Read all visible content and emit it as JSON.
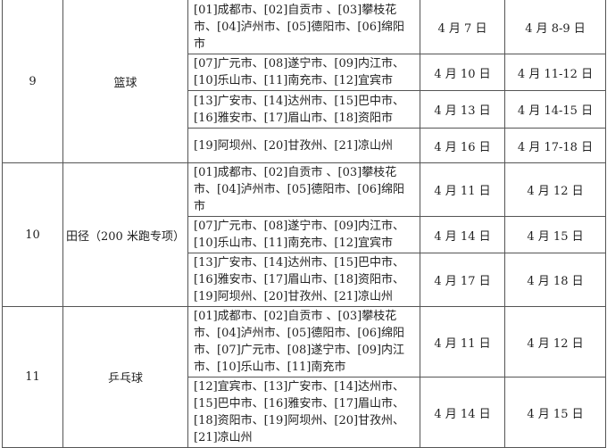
{
  "schedule": [
    {
      "no": "9",
      "sport": "篮球",
      "groups": [
        {
          "regions": [
            "[01]成都市、[02]自贡市 、[03]攀枝花",
            "市、[04]泸州市、[05]德阳市、[06]绵阳",
            "市"
          ],
          "date1": "4 月 7 日",
          "date2": "4 月 8-9 日"
        },
        {
          "regions": [
            "[07]广元市、[08]遂宁市、[09]内江市、",
            "[10]乐山市、[11]南充市、[12]宜宾市"
          ],
          "date1": "4 月 10 日",
          "date2": "4 月 11-12 日"
        },
        {
          "regions": [
            "[13]广安市、[14]达州市、[15]巴中市、",
            "[16]雅安市、[17]眉山市、[18]资阳市"
          ],
          "date1": "4 月 13 日",
          "date2": "4 月 14-15 日"
        },
        {
          "regions": [
            "[19]阿坝州、[20]甘孜州、[21]凉山州"
          ],
          "date1": "4 月 16 日",
          "date2": "4 月 17-18 日"
        }
      ]
    },
    {
      "no": "10",
      "sport": "田径（200 米跑专项）",
      "groups": [
        {
          "regions": [
            "[01]成都市、[02]自贡市 、[03]攀枝花",
            "市、[04]泸州市、[05]德阳市、[06]绵阳",
            "市"
          ],
          "date1": "4 月 11 日",
          "date2": "4 月 12 日"
        },
        {
          "regions": [
            "[07]广元市、[08]遂宁市、[09]内江市、",
            "[10]乐山市、[11]南充市、[12]宜宾市"
          ],
          "date1": "4 月 14 日",
          "date2": "4 月 15 日"
        },
        {
          "regions": [
            "[13]广安市、[14]达州市、[15]巴中市、",
            "[16]雅安市、[17]眉山市、[18]资阳市、",
            "[19]阿坝州、[20]甘孜州、[21]凉山州"
          ],
          "date1": "4 月 17 日",
          "date2": "4 月 18 日"
        }
      ]
    },
    {
      "no": "11",
      "sport": "乒乓球",
      "groups": [
        {
          "regions": [
            "[01]成都市、[02]自贡市 、[03]攀枝花",
            "市、[04]泸州市、[05]德阳市、[06]绵阳",
            "市、[07]广元市、[08]遂宁市、[09]内江",
            "市、[10]乐山市、[11]南充市"
          ],
          "date1": "4 月 11 日",
          "date2": "4 月 12 日"
        },
        {
          "regions": [
            "[12]宜宾市、[13]广安市、[14]达州市、",
            "[15]巴中市、[16]雅安市、[17]眉山市、",
            "[18]资阳市、[19]阿坝州、[20]甘孜州、",
            "[21]凉山州"
          ],
          "date1": "4 月 14 日",
          "date2": "4 月 15 日"
        }
      ]
    }
  ]
}
